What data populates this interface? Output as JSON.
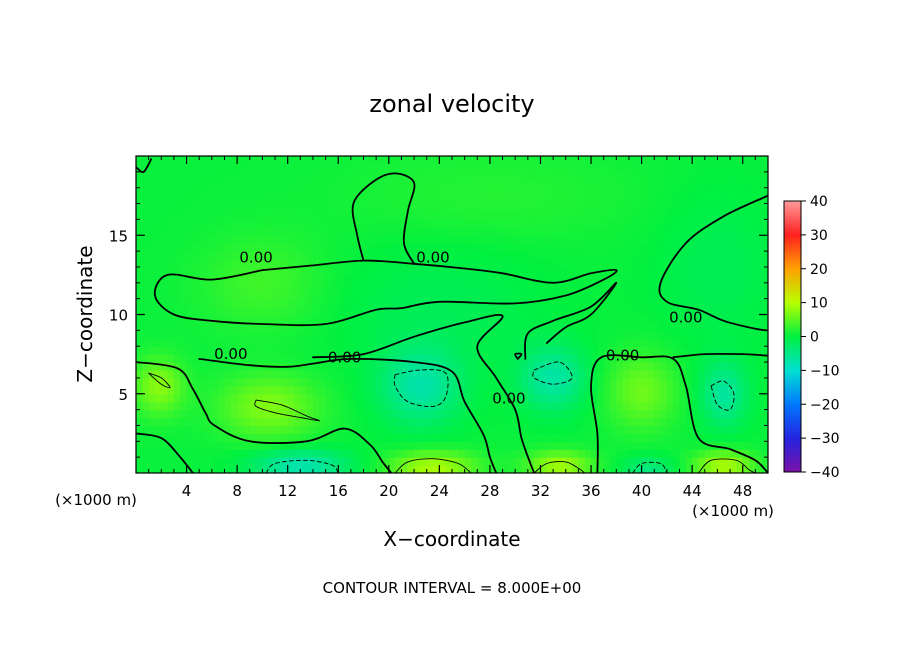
{
  "chart_data": {
    "type": "heatmap",
    "title": "zonal velocity",
    "xlabel": "X−coordinate",
    "ylabel": "Z−coordinate",
    "x_unit": "(×1000 m)",
    "x_unit_right": "(×1000 m)",
    "footer": "CONTOUR INTERVAL = 8.000E+00",
    "xlim": [
      0,
      50
    ],
    "ylim": [
      0,
      20
    ],
    "x_ticks": [
      4,
      8,
      12,
      16,
      20,
      24,
      28,
      32,
      36,
      40,
      44,
      48
    ],
    "x_tick_labels": [
      "4",
      "8",
      "12",
      "16",
      "20",
      "24",
      "28",
      "32",
      "36",
      "40",
      "44",
      "48"
    ],
    "y_ticks": [
      5,
      10,
      15
    ],
    "y_tick_labels": [
      "5",
      "10",
      "15"
    ],
    "colorbar": {
      "range": [
        -40,
        40
      ],
      "ticks": [
        -40,
        -30,
        -20,
        -10,
        0,
        10,
        20,
        30,
        40
      ],
      "tick_labels": [
        "−40",
        "−30",
        "−20",
        "−10",
        "0",
        "10",
        "20",
        "30",
        "40"
      ]
    },
    "contour_interval": 8,
    "contour_labels": [
      {
        "text": "0.00",
        "x": 9.5,
        "z": 13.6
      },
      {
        "text": "0.00",
        "x": 23.5,
        "z": 13.6
      },
      {
        "text": "0.00",
        "x": 43.5,
        "z": 9.8
      },
      {
        "text": "0.00",
        "x": 7.5,
        "z": 7.5
      },
      {
        "text": "0.00",
        "x": 16.5,
        "z": 7.3
      },
      {
        "text": "0.00",
        "x": 29.5,
        "z": 4.7
      },
      {
        "text": "0.00",
        "x": 38.5,
        "z": 7.4
      }
    ],
    "field_base": 0.5,
    "features": [
      {
        "x": 10.5,
        "z": 4.2,
        "a": 6.5,
        "sx": 4.0,
        "sz": 2.0
      },
      {
        "x": 1.8,
        "z": 5.5,
        "a": 7.0,
        "sx": 2.0,
        "sz": 1.8
      },
      {
        "x": 23.5,
        "z": 0.4,
        "a": 9.0,
        "sx": 3.5,
        "sz": 1.0
      },
      {
        "x": 33.5,
        "z": 0.5,
        "a": 8.5,
        "sx": 2.6,
        "sz": 0.9
      },
      {
        "x": 46.5,
        "z": 0.5,
        "a": 9.0,
        "sx": 2.4,
        "sz": 0.9
      },
      {
        "x": 40.0,
        "z": 5.2,
        "a": 5.5,
        "sx": 2.8,
        "sz": 2.4
      },
      {
        "x": 13.0,
        "z": 0.5,
        "a": -8.5,
        "sx": 3.8,
        "sz": 1.0
      },
      {
        "x": 22.5,
        "z": 5.5,
        "a": -7.5,
        "sx": 3.2,
        "sz": 2.4
      },
      {
        "x": 33.0,
        "z": 6.0,
        "a": -7.5,
        "sx": 2.6,
        "sz": 2.0
      },
      {
        "x": 46.5,
        "z": 5.0,
        "a": -7.0,
        "sx": 1.8,
        "sz": 2.0
      },
      {
        "x": 40.5,
        "z": 0.3,
        "a": -5.0,
        "sx": 2.0,
        "sz": 0.8
      },
      {
        "x": 10.0,
        "z": 12.0,
        "a": 3.0,
        "sx": 5.0,
        "sz": 3.0
      },
      {
        "x": 24.0,
        "z": 10.5,
        "a": -2.0,
        "sx": 8.0,
        "sz": 4.0
      },
      {
        "x": 46.0,
        "z": 13.0,
        "a": -2.0,
        "sx": 4.5,
        "sz": 5.0
      },
      {
        "x": 28.0,
        "z": 17.5,
        "a": 1.5,
        "sx": 12.0,
        "sz": 3.0
      }
    ],
    "contours": [
      {
        "style": "solid",
        "level": 0,
        "points": [
          [
            10,
            12.8
          ],
          [
            6,
            12.2
          ],
          [
            2.5,
            12.5
          ],
          [
            1.5,
            11.2
          ],
          [
            3,
            10.0
          ],
          [
            6,
            9.6
          ],
          [
            10,
            9.4
          ],
          [
            15,
            9.4
          ],
          [
            19,
            10.3
          ],
          [
            21,
            10.4
          ],
          [
            24,
            10.8
          ],
          [
            30,
            10.7
          ],
          [
            34,
            11.2
          ],
          [
            37,
            12.2
          ],
          [
            38,
            12.8
          ],
          [
            36,
            12.6
          ],
          [
            33,
            12.0
          ],
          [
            29,
            12.6
          ],
          [
            26,
            12.9
          ],
          [
            22,
            13.2
          ],
          [
            18,
            13.4
          ],
          [
            14,
            13.1
          ],
          [
            10,
            12.8
          ]
        ]
      },
      {
        "style": "solid",
        "level": 0,
        "points": [
          [
            18,
            13.4
          ],
          [
            17.5,
            15.0
          ],
          [
            17.2,
            17.0
          ],
          [
            18.8,
            18.4
          ],
          [
            20.5,
            18.9
          ],
          [
            22,
            18.3
          ],
          [
            21.5,
            16.5
          ],
          [
            21.2,
            14.5
          ],
          [
            22,
            13.2
          ]
        ]
      },
      {
        "style": "solid",
        "level": 0,
        "points": [
          [
            50,
            17.5
          ],
          [
            46.5,
            16.2
          ],
          [
            43.5,
            14.5
          ],
          [
            41.5,
            12.0
          ],
          [
            42,
            10.8
          ],
          [
            44.5,
            10.3
          ],
          [
            46.5,
            9.6
          ],
          [
            49,
            9.1
          ],
          [
            50,
            9.0
          ]
        ]
      },
      {
        "style": "solid",
        "level": 0,
        "points": [
          [
            0,
            19.3
          ],
          [
            0.6,
            19.0
          ],
          [
            1.2,
            19.8
          ]
        ]
      },
      {
        "style": "solid",
        "level": 0,
        "points": [
          [
            0,
            7.0
          ],
          [
            3.3,
            6.6
          ],
          [
            4.5,
            5.3
          ],
          [
            5.5,
            3.8
          ],
          [
            6.2,
            3.0
          ],
          [
            9,
            2.0
          ],
          [
            13.5,
            2.0
          ],
          [
            16.5,
            2.8
          ],
          [
            18.5,
            1.8
          ],
          [
            19.5,
            0.7
          ],
          [
            20.2,
            0.0
          ]
        ]
      },
      {
        "style": "solid",
        "level": 0,
        "points": [
          [
            5,
            7.2
          ],
          [
            9,
            6.8
          ],
          [
            12,
            6.7
          ],
          [
            14,
            6.9
          ],
          [
            17,
            7.2
          ],
          [
            22,
            7.0
          ],
          [
            25,
            6.4
          ],
          [
            26,
            4.5
          ],
          [
            27.5,
            2.4
          ],
          [
            28,
            1.0
          ],
          [
            28.5,
            0.0
          ]
        ]
      },
      {
        "style": "solid",
        "level": 0,
        "points": [
          [
            14,
            7.3
          ],
          [
            18,
            7.5
          ],
          [
            22,
            8.6
          ],
          [
            26,
            9.5
          ],
          [
            29,
            9.9
          ],
          [
            27,
            8.0
          ],
          [
            28.5,
            6.0
          ],
          [
            30,
            4.0
          ],
          [
            30.5,
            2.2
          ],
          [
            31.2,
            0.6
          ],
          [
            31.5,
            0.0
          ]
        ]
      },
      {
        "style": "solid",
        "level": 0,
        "points": [
          [
            30.8,
            7.2
          ],
          [
            31,
            8.8
          ],
          [
            33,
            9.6
          ],
          [
            36,
            10.5
          ],
          [
            38,
            12.0
          ],
          [
            36,
            10.0
          ],
          [
            34,
            9.2
          ],
          [
            32.5,
            8.2
          ]
        ]
      },
      {
        "style": "solid",
        "level": 0,
        "points": [
          [
            36.5,
            0.0
          ],
          [
            36.5,
            2.5
          ],
          [
            36.0,
            5.5
          ],
          [
            36.8,
            7.3
          ],
          [
            40,
            7.3
          ],
          [
            42.5,
            7.2
          ],
          [
            43.5,
            5.5
          ],
          [
            44.5,
            2.2
          ],
          [
            47,
            1.5
          ],
          [
            49,
            0.8
          ],
          [
            50,
            0.0
          ]
        ]
      },
      {
        "style": "solid",
        "level": 0,
        "points": [
          [
            42.5,
            7.3
          ],
          [
            45,
            7.5
          ],
          [
            48,
            7.5
          ],
          [
            50,
            7.4
          ]
        ]
      },
      {
        "style": "solid",
        "level": 0,
        "points": [
          [
            0,
            2.5
          ],
          [
            2,
            2.2
          ],
          [
            3.5,
            1.0
          ],
          [
            4.5,
            0.0
          ]
        ]
      },
      {
        "style": "solid",
        "level": 0,
        "points": [
          [
            30.2,
            7.2
          ],
          [
            30.5,
            7.5
          ],
          [
            30.0,
            7.5
          ],
          [
            30.2,
            7.2
          ]
        ]
      },
      {
        "style": "thin",
        "level": 8,
        "points": [
          [
            9.5,
            4.6
          ],
          [
            11.5,
            4.3
          ],
          [
            13.5,
            3.6
          ],
          [
            14.5,
            3.3
          ],
          [
            13,
            3.5
          ],
          [
            11,
            3.8
          ],
          [
            9.5,
            4.2
          ],
          [
            9.5,
            4.6
          ]
        ]
      },
      {
        "style": "thin",
        "level": 8,
        "points": [
          [
            1.0,
            6.3
          ],
          [
            2.0,
            5.6
          ],
          [
            2.7,
            5.4
          ],
          [
            2.0,
            6.0
          ],
          [
            1.0,
            6.3
          ]
        ]
      },
      {
        "style": "thin",
        "level": 8,
        "points": [
          [
            20.5,
            0.0
          ],
          [
            21.5,
            0.7
          ],
          [
            23.5,
            0.9
          ],
          [
            25.5,
            0.6
          ],
          [
            26.5,
            0.0
          ]
        ]
      },
      {
        "style": "thin",
        "level": 8,
        "points": [
          [
            31.5,
            0.0
          ],
          [
            32.5,
            0.6
          ],
          [
            34,
            0.7
          ],
          [
            35,
            0.3
          ],
          [
            35.5,
            0.0
          ]
        ]
      },
      {
        "style": "thin",
        "level": 8,
        "points": [
          [
            44.5,
            0.0
          ],
          [
            45.5,
            0.8
          ],
          [
            47.5,
            0.8
          ],
          [
            48.5,
            0.2
          ],
          [
            49,
            0.0
          ]
        ]
      },
      {
        "style": "dashed",
        "level": -8,
        "points": [
          [
            10.3,
            0.0
          ],
          [
            11,
            0.6
          ],
          [
            13.5,
            0.8
          ],
          [
            15.5,
            0.5
          ],
          [
            16.0,
            0.0
          ]
        ]
      },
      {
        "style": "dashed",
        "level": -8,
        "points": [
          [
            20.5,
            6.2
          ],
          [
            22.5,
            6.5
          ],
          [
            24.5,
            6.3
          ],
          [
            24.5,
            4.8
          ],
          [
            23.5,
            4.2
          ],
          [
            21.5,
            4.5
          ],
          [
            20.5,
            5.5
          ],
          [
            20.5,
            6.2
          ]
        ]
      },
      {
        "style": "dashed",
        "level": -8,
        "points": [
          [
            31.5,
            6.5
          ],
          [
            33.5,
            7.0
          ],
          [
            34.5,
            6.0
          ],
          [
            33.0,
            5.6
          ],
          [
            31.5,
            6.0
          ],
          [
            31.5,
            6.5
          ]
        ]
      },
      {
        "style": "dashed",
        "level": -8,
        "points": [
          [
            45.5,
            5.5
          ],
          [
            46.5,
            5.8
          ],
          [
            47.3,
            5.0
          ],
          [
            47,
            4.0
          ],
          [
            46,
            4.3
          ],
          [
            45.5,
            5.5
          ]
        ]
      },
      {
        "style": "dashed",
        "level": -8,
        "points": [
          [
            39.3,
            0.0
          ],
          [
            40,
            0.6
          ],
          [
            41.5,
            0.6
          ],
          [
            42,
            0.0
          ]
        ]
      }
    ]
  }
}
